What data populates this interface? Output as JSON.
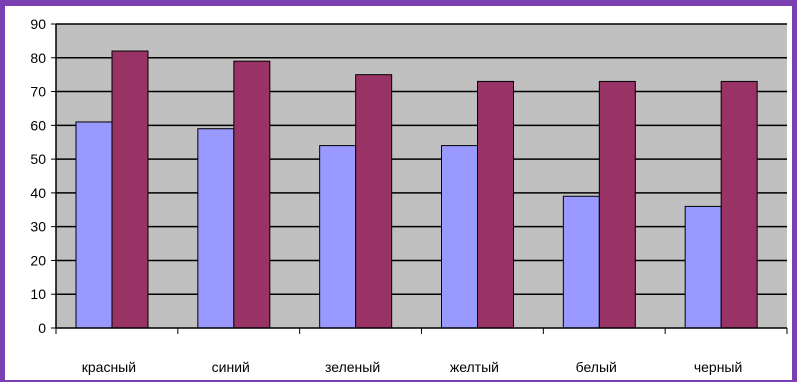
{
  "chart_data": {
    "type": "bar",
    "title": "",
    "xlabel": "",
    "ylabel": "",
    "categories": [
      "красный",
      "синий",
      "зеленый",
      "желтый",
      "белый",
      "черный"
    ],
    "series": [
      {
        "values": [
          61,
          59,
          54,
          54,
          39,
          36
        ],
        "color": "#9999ff"
      },
      {
        "values": [
          82,
          79,
          75,
          73,
          73,
          73
        ],
        "color": "#993366"
      }
    ],
    "ylim": [
      0,
      90
    ],
    "yticks": [
      0,
      10,
      20,
      30,
      40,
      50,
      60,
      70,
      80,
      90
    ],
    "grid": true,
    "legend": "none",
    "plot_background": "#c0c0c0",
    "frame_color": "#7a3fb0"
  }
}
